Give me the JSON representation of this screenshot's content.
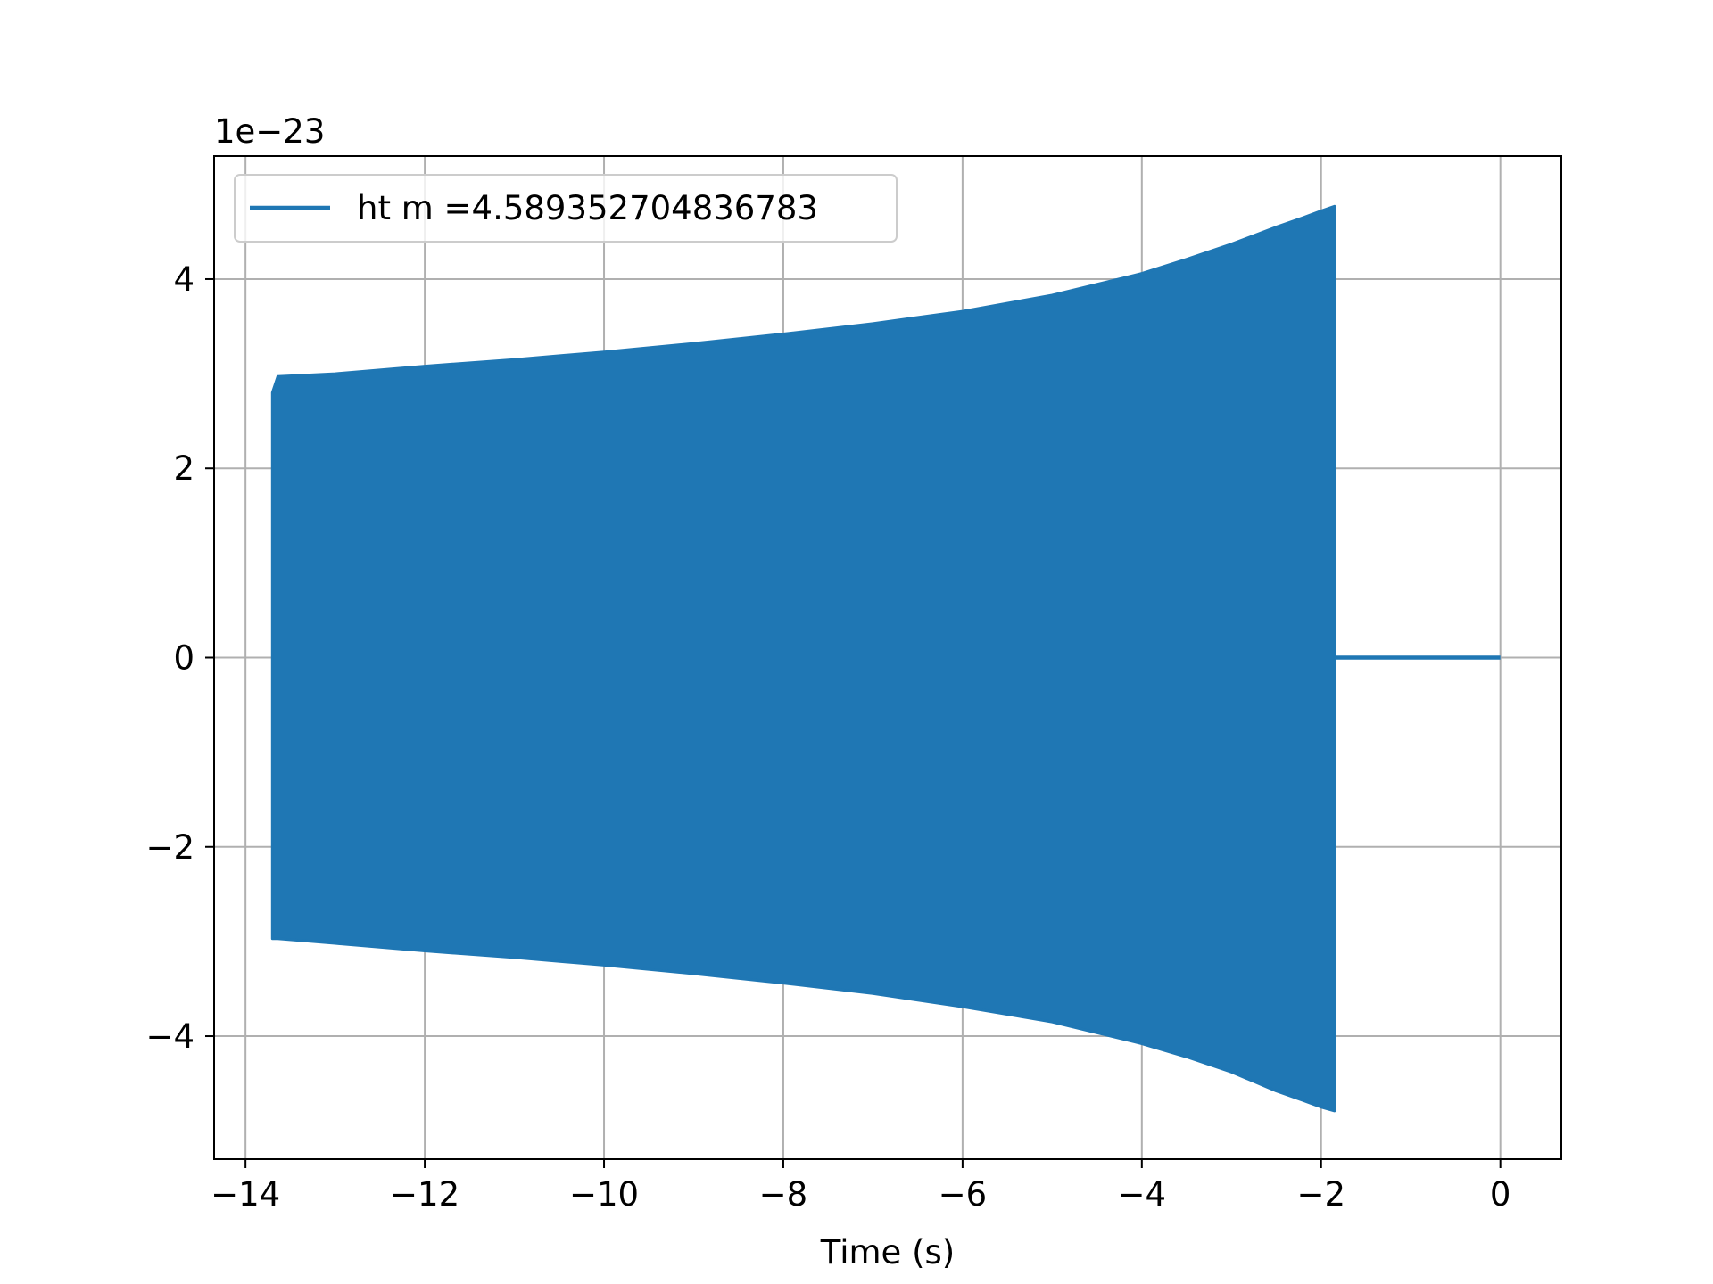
{
  "chart_data": {
    "type": "line",
    "title": "",
    "xlabel": "Time (s)",
    "ylabel": "",
    "y_offset_label": "1e−23",
    "xlim": [
      -14.35,
      0.68
    ],
    "ylim": [
      -5.3,
      5.3
    ],
    "grid": true,
    "legend_position": "upper-left",
    "x_ticks": [
      -14,
      -12,
      -10,
      -8,
      -6,
      -4,
      -2,
      0
    ],
    "x_tick_labels": [
      "−14",
      "−12",
      "−10",
      "−8",
      "−6",
      "−4",
      "−2",
      "0"
    ],
    "y_ticks": [
      -4,
      -2,
      0,
      2,
      4
    ],
    "y_tick_labels": [
      "−4",
      "−2",
      "0",
      "2",
      "4"
    ],
    "series": [
      {
        "name": "ht m =4.589352704836783",
        "color": "#1f77b4",
        "signal_start": -13.7,
        "signal_end": -1.85,
        "data_end": 0.0,
        "envelope": {
          "t": [
            -13.7,
            -13.64,
            -13,
            -12,
            -11,
            -10,
            -9,
            -8,
            -7,
            -6,
            -5,
            -4,
            -3.5,
            -3,
            -2.5,
            -2.2,
            -2.0,
            -1.85
          ],
          "upper": [
            2.8,
            2.97,
            3.0,
            3.08,
            3.15,
            3.23,
            3.32,
            3.42,
            3.53,
            3.66,
            3.83,
            4.06,
            4.21,
            4.37,
            4.55,
            4.65,
            4.72,
            4.77
          ],
          "lower": [
            -2.97,
            -2.97,
            -3.02,
            -3.1,
            -3.17,
            -3.25,
            -3.34,
            -3.44,
            -3.55,
            -3.69,
            -3.85,
            -4.08,
            -4.22,
            -4.38,
            -4.58,
            -4.68,
            -4.75,
            -4.79
          ]
        }
      }
    ]
  }
}
